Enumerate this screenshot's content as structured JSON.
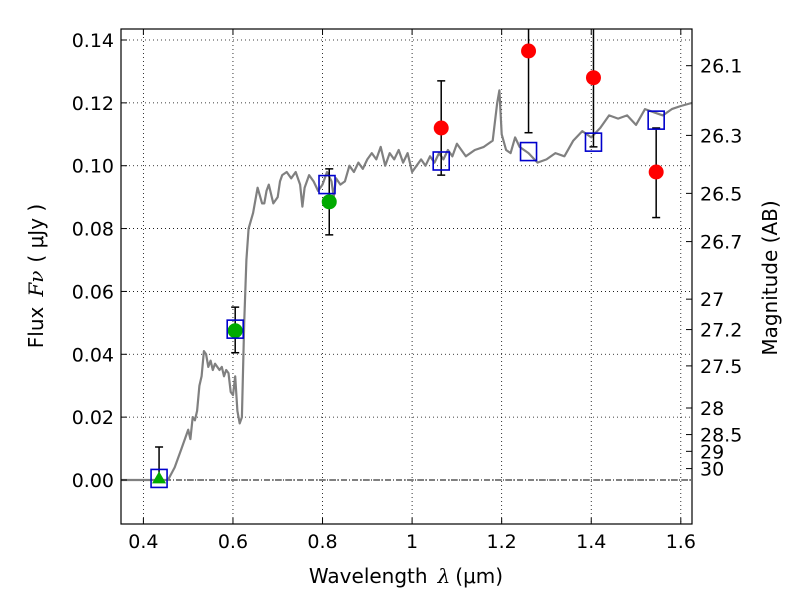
{
  "chart_data": {
    "type": "scatter",
    "title": "",
    "xlabel": "Wavelength",
    "xlabel_math": "λ",
    "xlabel_unit": "(μm)",
    "ylabel": "Flux",
    "ylabel_math": "Fν",
    "ylabel_unit": "( μJy )",
    "y2label": "Magnitude (AB)",
    "xlim": [
      0.35,
      1.625
    ],
    "ylim": [
      -0.014,
      0.1435
    ],
    "grid": true,
    "x_ticks": [
      0.4,
      0.6,
      0.8,
      1.0,
      1.2,
      1.4,
      1.6
    ],
    "x_tick_labels": [
      "0.4",
      "0.6",
      "0.8",
      "1",
      "1.2",
      "1.4",
      "1.6"
    ],
    "y_ticks": [
      0.0,
      0.02,
      0.04,
      0.06,
      0.08,
      0.1,
      0.12,
      0.14
    ],
    "y_tick_labels": [
      "0.00",
      "0.02",
      "0.04",
      "0.06",
      "0.08",
      "0.10",
      "0.12",
      "0.14"
    ],
    "magnitude_ticks": [
      "26.1",
      "26.3",
      "26.5",
      "26.7",
      "27",
      "27.2",
      "27.5",
      "28",
      "28.5",
      "29",
      "30"
    ],
    "colors": {
      "model": "#808080",
      "model_points": "#0000cc",
      "detections": "#00aa00",
      "upper_points": "#ff0000",
      "errorbar": "#000000",
      "grid": "#000000",
      "zero_line": "#000000"
    },
    "series": [
      {
        "kind": "line",
        "points": [
          [
            0.35,
            0.0
          ],
          [
            0.44,
            0.0
          ],
          [
            0.455,
            0.0
          ],
          [
            0.47,
            0.004
          ],
          [
            0.485,
            0.01
          ],
          [
            0.5,
            0.016
          ],
          [
            0.505,
            0.013
          ],
          [
            0.51,
            0.02
          ],
          [
            0.515,
            0.019
          ],
          [
            0.52,
            0.022
          ],
          [
            0.525,
            0.03
          ],
          [
            0.53,
            0.033
          ],
          [
            0.535,
            0.041
          ],
          [
            0.54,
            0.04
          ],
          [
            0.545,
            0.036
          ],
          [
            0.55,
            0.038
          ],
          [
            0.555,
            0.035
          ],
          [
            0.56,
            0.037
          ],
          [
            0.57,
            0.035
          ],
          [
            0.575,
            0.036
          ],
          [
            0.58,
            0.033
          ],
          [
            0.585,
            0.035
          ],
          [
            0.59,
            0.034
          ],
          [
            0.595,
            0.028
          ],
          [
            0.6,
            0.027
          ],
          [
            0.605,
            0.033
          ],
          [
            0.61,
            0.022
          ],
          [
            0.615,
            0.018
          ],
          [
            0.62,
            0.02
          ],
          [
            0.625,
            0.05
          ],
          [
            0.63,
            0.07
          ],
          [
            0.635,
            0.08
          ],
          [
            0.645,
            0.085
          ],
          [
            0.655,
            0.093
          ],
          [
            0.665,
            0.088
          ],
          [
            0.67,
            0.088
          ],
          [
            0.675,
            0.092
          ],
          [
            0.68,
            0.094
          ],
          [
            0.69,
            0.088
          ],
          [
            0.7,
            0.09
          ],
          [
            0.705,
            0.095
          ],
          [
            0.71,
            0.097
          ],
          [
            0.72,
            0.098
          ],
          [
            0.73,
            0.096
          ],
          [
            0.74,
            0.098
          ],
          [
            0.75,
            0.094
          ],
          [
            0.755,
            0.087
          ],
          [
            0.76,
            0.093
          ],
          [
            0.77,
            0.097
          ],
          [
            0.78,
            0.095
          ],
          [
            0.79,
            0.092
          ],
          [
            0.8,
            0.094
          ],
          [
            0.81,
            0.098
          ],
          [
            0.82,
            0.095
          ],
          [
            0.825,
            0.09
          ],
          [
            0.83,
            0.096
          ],
          [
            0.84,
            0.094
          ],
          [
            0.85,
            0.095
          ],
          [
            0.86,
            0.1
          ],
          [
            0.87,
            0.098
          ],
          [
            0.88,
            0.101
          ],
          [
            0.89,
            0.099
          ],
          [
            0.9,
            0.102
          ],
          [
            0.91,
            0.104
          ],
          [
            0.92,
            0.102
          ],
          [
            0.93,
            0.106
          ],
          [
            0.94,
            0.1
          ],
          [
            0.95,
            0.104
          ],
          [
            0.96,
            0.102
          ],
          [
            0.97,
            0.105
          ],
          [
            0.98,
            0.101
          ],
          [
            0.99,
            0.104
          ],
          [
            1.0,
            0.098
          ],
          [
            1.01,
            0.1
          ],
          [
            1.02,
            0.102
          ],
          [
            1.03,
            0.1
          ],
          [
            1.04,
            0.103
          ],
          [
            1.05,
            0.101
          ],
          [
            1.06,
            0.104
          ],
          [
            1.07,
            0.102
          ],
          [
            1.08,
            0.105
          ],
          [
            1.09,
            0.103
          ],
          [
            1.1,
            0.107
          ],
          [
            1.12,
            0.103
          ],
          [
            1.14,
            0.105
          ],
          [
            1.16,
            0.106
          ],
          [
            1.18,
            0.108
          ],
          [
            1.19,
            0.12
          ],
          [
            1.195,
            0.124
          ],
          [
            1.2,
            0.11
          ],
          [
            1.21,
            0.105
          ],
          [
            1.22,
            0.104
          ],
          [
            1.23,
            0.109
          ],
          [
            1.24,
            0.106
          ],
          [
            1.26,
            0.104
          ],
          [
            1.28,
            0.101
          ],
          [
            1.3,
            0.102
          ],
          [
            1.32,
            0.104
          ],
          [
            1.34,
            0.103
          ],
          [
            1.36,
            0.108
          ],
          [
            1.38,
            0.111
          ],
          [
            1.4,
            0.109
          ],
          [
            1.42,
            0.112
          ],
          [
            1.44,
            0.116
          ],
          [
            1.46,
            0.115
          ],
          [
            1.48,
            0.116
          ],
          [
            1.5,
            0.113
          ],
          [
            1.52,
            0.118
          ],
          [
            1.54,
            0.117
          ],
          [
            1.56,
            0.116
          ],
          [
            1.58,
            0.118
          ],
          [
            1.6,
            0.119
          ],
          [
            1.625,
            0.12
          ]
        ]
      },
      {
        "kind": "open-squares",
        "points": [
          [
            0.435,
            0.0005
          ],
          [
            0.605,
            0.048
          ],
          [
            0.81,
            0.094
          ],
          [
            1.065,
            0.1015
          ],
          [
            1.26,
            0.1045
          ],
          [
            1.405,
            0.1075
          ],
          [
            1.545,
            0.1145
          ]
        ]
      },
      {
        "kind": "green-circles",
        "points": [
          [
            0.605,
            0.0475
          ],
          [
            0.815,
            0.0885
          ]
        ]
      },
      {
        "kind": "green-triangles",
        "points": [
          [
            0.435,
            0.0005
          ]
        ]
      },
      {
        "kind": "red-circles",
        "points": [
          [
            1.065,
            0.112
          ],
          [
            1.26,
            0.1365
          ],
          [
            1.405,
            0.128
          ],
          [
            1.545,
            0.098
          ]
        ]
      },
      {
        "kind": "errorbars",
        "bars": [
          {
            "x": 0.435,
            "ylow": 0.0,
            "yhigh": 0.0105
          },
          {
            "x": 0.605,
            "ylow": 0.0405,
            "yhigh": 0.055
          },
          {
            "x": 0.815,
            "ylow": 0.078,
            "yhigh": 0.099
          },
          {
            "x": 1.065,
            "ylow": 0.097,
            "yhigh": 0.127
          },
          {
            "x": 1.26,
            "ylow": 0.1105,
            "yhigh": 0.1435
          },
          {
            "x": 1.405,
            "ylow": 0.106,
            "yhigh": 0.1435
          },
          {
            "x": 1.545,
            "ylow": 0.0835,
            "yhigh": 0.112
          }
        ]
      }
    ]
  }
}
